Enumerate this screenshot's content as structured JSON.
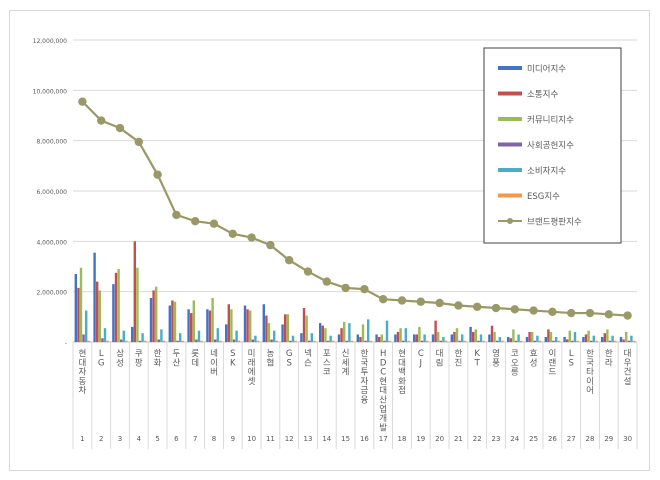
{
  "chart_data": {
    "type": "bar",
    "title": "",
    "xlabel": "",
    "ylabel": "",
    "ylim": [
      0,
      12000000
    ],
    "y_ticks": [
      "-",
      "2,000,000",
      "4,000,000",
      "6,000,000",
      "8,000,000",
      "10,000,000",
      "12,000,000"
    ],
    "y_tick_values": [
      0,
      2000000,
      4000000,
      6000000,
      8000000,
      10000000,
      12000000
    ],
    "grid": true,
    "legend_position": "top-right",
    "categories": [
      "현대자동차",
      "LG",
      "삼성",
      "쿠팡",
      "한화",
      "두산",
      "롯데",
      "네이버",
      "SK",
      "미래에셋",
      "농협",
      "GS",
      "넥슨",
      "포스코",
      "신세계",
      "한국투자금융",
      "HDC현대산업개발",
      "현대백화점",
      "CJ",
      "대림",
      "한진",
      "KT",
      "영풍",
      "코오롱",
      "효성",
      "이랜드",
      "LS",
      "한국타이어",
      "한라",
      "대우건설"
    ],
    "ranks": [
      "1",
      "2",
      "3",
      "4",
      "5",
      "6",
      "7",
      "8",
      "9",
      "10",
      "11",
      "12",
      "13",
      "14",
      "15",
      "16",
      "17",
      "18",
      "19",
      "20",
      "21",
      "22",
      "23",
      "24",
      "25",
      "26",
      "27",
      "28",
      "29",
      "30"
    ],
    "series": [
      {
        "name": "미디어지수",
        "type": "bar",
        "color": "#4472c4",
        "values": [
          2700000,
          3550000,
          2300000,
          600000,
          1750000,
          1450000,
          1300000,
          1300000,
          700000,
          1450000,
          1500000,
          700000,
          350000,
          750000,
          300000,
          300000,
          300000,
          300000,
          300000,
          300000,
          300000,
          600000,
          300000,
          200000,
          200000,
          200000,
          200000,
          200000,
          200000,
          200000
        ]
      },
      {
        "name": "소통지수",
        "type": "bar",
        "color": "#c0504d",
        "values": [
          2150000,
          2400000,
          2750000,
          4000000,
          2050000,
          1650000,
          1150000,
          1250000,
          1500000,
          1300000,
          1050000,
          1100000,
          1350000,
          650000,
          550000,
          200000,
          200000,
          400000,
          300000,
          850000,
          400000,
          400000,
          650000,
          150000,
          400000,
          500000,
          100000,
          300000,
          350000,
          100000
        ]
      },
      {
        "name": "커뮤니티지수",
        "type": "bar",
        "color": "#9bbb59",
        "values": [
          2950000,
          2050000,
          2900000,
          2950000,
          2200000,
          1600000,
          1650000,
          1750000,
          1300000,
          1250000,
          750000,
          1100000,
          1050000,
          550000,
          800000,
          700000,
          300000,
          550000,
          600000,
          400000,
          550000,
          500000,
          400000,
          500000,
          400000,
          400000,
          450000,
          450000,
          500000,
          400000
        ]
      },
      {
        "name": "사회공헌지수",
        "type": "bar",
        "color": "#8064a2",
        "values": [
          300000,
          150000,
          100000,
          50000,
          100000,
          50000,
          100000,
          100000,
          100000,
          100000,
          100000,
          50000,
          50000,
          50000,
          50000,
          50000,
          50000,
          50000,
          50000,
          50000,
          50000,
          50000,
          50000,
          50000,
          50000,
          50000,
          50000,
          50000,
          50000,
          50000
        ]
      },
      {
        "name": "소비자지수",
        "type": "bar",
        "color": "#4bacc6",
        "values": [
          1250000,
          550000,
          450000,
          350000,
          500000,
          350000,
          450000,
          550000,
          450000,
          250000,
          450000,
          250000,
          350000,
          250000,
          750000,
          900000,
          850000,
          550000,
          300000,
          200000,
          300000,
          300000,
          200000,
          300000,
          250000,
          200000,
          400000,
          250000,
          250000,
          250000
        ]
      },
      {
        "name": "ESG지수",
        "type": "bar",
        "color": "#f79646",
        "values": [
          50000,
          50000,
          50000,
          50000,
          50000,
          50000,
          50000,
          50000,
          50000,
          50000,
          50000,
          50000,
          50000,
          50000,
          50000,
          50000,
          50000,
          50000,
          50000,
          50000,
          50000,
          50000,
          50000,
          50000,
          50000,
          50000,
          50000,
          50000,
          50000,
          50000
        ]
      },
      {
        "name": "브랜드평판지수",
        "type": "line",
        "color": "#9b9867",
        "values": [
          9550000,
          8800000,
          8500000,
          7950000,
          6650000,
          5050000,
          4800000,
          4700000,
          4300000,
          4150000,
          3850000,
          3250000,
          2800000,
          2400000,
          2150000,
          2100000,
          1700000,
          1650000,
          1600000,
          1550000,
          1450000,
          1400000,
          1350000,
          1300000,
          1250000,
          1200000,
          1150000,
          1150000,
          1100000,
          1050000
        ]
      }
    ]
  }
}
